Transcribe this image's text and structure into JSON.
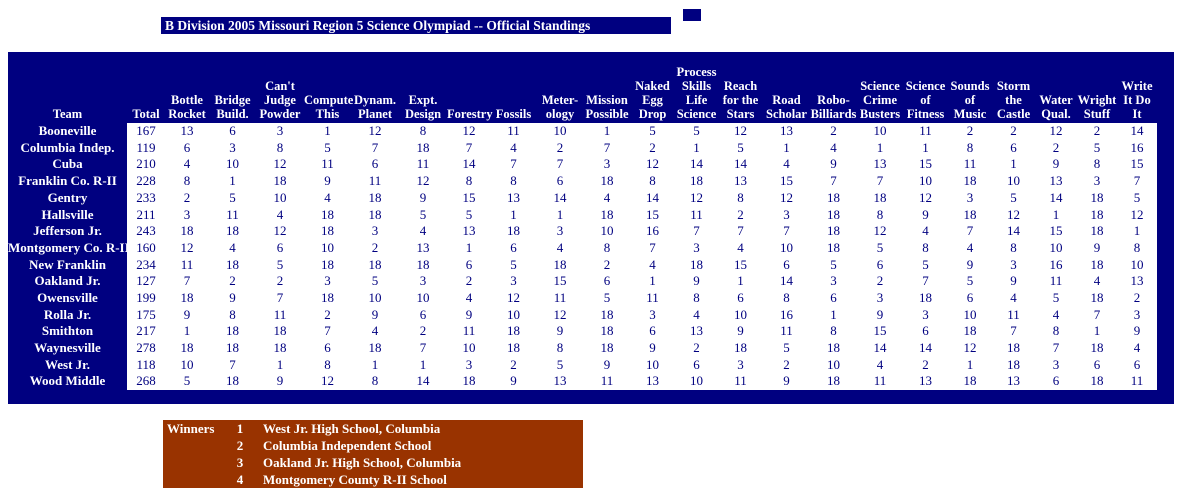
{
  "title_bar": {
    "text": "B Division 2005 Missouri Region 5 Science Olympiad -- Official Standings"
  },
  "standings_table": {
    "team_column_header": "Team",
    "event_columns": [
      "Total",
      "Bottle\nRocket",
      "Bridge\nBuild.",
      "Can't\nJudge\nPowder",
      "Compute\nThis",
      "Dynam.\nPlanet",
      "Expt.\nDesign",
      "Forestry",
      "Fossils",
      "Meter-\nology",
      "Mission\nPossible",
      "Naked\nEgg\nDrop",
      "Process\nSkills\nLife\nScience",
      "Reach\nfor the\nStars",
      "Road\nScholar",
      "Robo-\nBilliards",
      "Science\nCrime\nBusters",
      "Science\nof\nFitness",
      "Sounds\nof Music",
      "Storm\nthe\nCastle",
      "Water\nQual.",
      "Wright\nStuff",
      "Write\nIt Do\nIt"
    ],
    "rows": [
      {
        "team": "Booneville",
        "scores": [
          167,
          13,
          6,
          3,
          1,
          12,
          8,
          12,
          11,
          10,
          1,
          5,
          5,
          12,
          13,
          2,
          10,
          11,
          2,
          2,
          12,
          2,
          14
        ]
      },
      {
        "team": "Columbia Indep.",
        "scores": [
          119,
          6,
          3,
          8,
          5,
          7,
          18,
          7,
          4,
          2,
          7,
          2,
          1,
          5,
          1,
          4,
          1,
          1,
          8,
          6,
          2,
          5,
          16
        ]
      },
      {
        "team": "Cuba",
        "scores": [
          210,
          4,
          10,
          12,
          11,
          6,
          11,
          14,
          7,
          7,
          3,
          12,
          14,
          14,
          4,
          9,
          13,
          15,
          11,
          1,
          9,
          8,
          15
        ]
      },
      {
        "team": "Franklin Co. R-II",
        "scores": [
          228,
          8,
          1,
          18,
          9,
          11,
          12,
          8,
          8,
          6,
          18,
          8,
          18,
          13,
          15,
          7,
          7,
          10,
          18,
          10,
          13,
          3,
          7
        ]
      },
      {
        "team": "Gentry",
        "scores": [
          233,
          2,
          5,
          10,
          4,
          18,
          9,
          15,
          13,
          14,
          4,
          14,
          12,
          8,
          12,
          18,
          18,
          12,
          3,
          5,
          14,
          18,
          5
        ]
      },
      {
        "team": "Hallsville",
        "scores": [
          211,
          3,
          11,
          4,
          18,
          18,
          5,
          5,
          1,
          1,
          18,
          15,
          11,
          2,
          3,
          18,
          8,
          9,
          18,
          12,
          1,
          18,
          12
        ]
      },
      {
        "team": "Jefferson Jr.",
        "scores": [
          243,
          18,
          18,
          12,
          18,
          3,
          4,
          13,
          18,
          3,
          10,
          16,
          7,
          7,
          7,
          18,
          12,
          4,
          7,
          14,
          15,
          18,
          1
        ]
      },
      {
        "team": "Montgomery Co. R-II",
        "scores": [
          160,
          12,
          4,
          6,
          10,
          2,
          13,
          1,
          6,
          4,
          8,
          7,
          3,
          4,
          10,
          18,
          5,
          8,
          4,
          8,
          10,
          9,
          8
        ]
      },
      {
        "team": "New Franklin",
        "scores": [
          234,
          11,
          18,
          5,
          18,
          18,
          18,
          6,
          5,
          18,
          2,
          4,
          18,
          15,
          6,
          5,
          6,
          5,
          9,
          3,
          16,
          18,
          10
        ]
      },
      {
        "team": "Oakland Jr.",
        "scores": [
          127,
          7,
          2,
          2,
          3,
          5,
          3,
          2,
          3,
          15,
          6,
          1,
          9,
          1,
          14,
          3,
          2,
          7,
          5,
          9,
          11,
          4,
          13
        ]
      },
      {
        "team": "Owensville",
        "scores": [
          199,
          18,
          9,
          7,
          18,
          10,
          10,
          4,
          12,
          11,
          5,
          11,
          8,
          6,
          8,
          6,
          3,
          18,
          6,
          4,
          5,
          18,
          2
        ]
      },
      {
        "team": "Rolla Jr.",
        "scores": [
          175,
          9,
          8,
          11,
          2,
          9,
          6,
          9,
          10,
          12,
          18,
          3,
          4,
          10,
          16,
          1,
          9,
          3,
          10,
          11,
          4,
          7,
          3
        ]
      },
      {
        "team": "Smithton",
        "scores": [
          217,
          1,
          18,
          18,
          7,
          4,
          2,
          11,
          18,
          9,
          18,
          6,
          13,
          9,
          11,
          8,
          15,
          6,
          18,
          7,
          8,
          1,
          9
        ]
      },
      {
        "team": "Waynesville",
        "scores": [
          278,
          18,
          18,
          18,
          6,
          18,
          7,
          10,
          18,
          8,
          18,
          9,
          2,
          18,
          5,
          18,
          14,
          14,
          12,
          18,
          7,
          18,
          4
        ]
      },
      {
        "team": "West Jr.",
        "scores": [
          118,
          10,
          7,
          1,
          8,
          1,
          1,
          3,
          2,
          5,
          9,
          10,
          6,
          3,
          2,
          10,
          4,
          2,
          1,
          18,
          3,
          6,
          6
        ]
      },
      {
        "team": "Wood Middle",
        "scores": [
          268,
          5,
          18,
          9,
          12,
          8,
          14,
          18,
          9,
          13,
          11,
          13,
          10,
          11,
          9,
          18,
          11,
          13,
          18,
          13,
          6,
          18,
          11
        ]
      }
    ]
  },
  "winners_panel": {
    "label": "Winners",
    "entries": [
      {
        "rank": "1",
        "school": "West Jr. High School, Columbia"
      },
      {
        "rank": "2",
        "school": "Columbia Independent School"
      },
      {
        "rank": "3",
        "school": "Oakland Jr. High School, Columbia"
      },
      {
        "rank": "4",
        "school": "Montgomery County R-II School"
      }
    ]
  },
  "colors": {
    "navy": "#000080",
    "rust_brown": "#993300",
    "header_text": "#ffffff",
    "score_text": "#000080"
  }
}
